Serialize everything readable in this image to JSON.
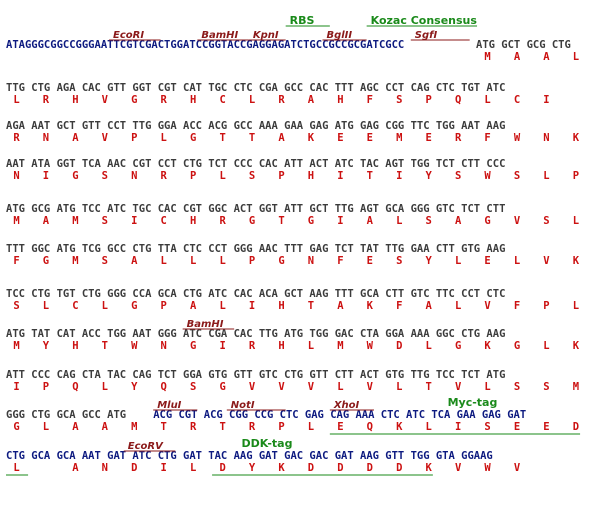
{
  "colors": {
    "dna": "#3c3c3c",
    "vector_dna": "#0d1a80",
    "amino_acid": "#cc1111",
    "restriction_site": "#8b1a1a",
    "feature_tag": "#1a8a1a"
  },
  "rows": [
    {
      "dna": [
        {
          "text": "ATAGGGCGGCCGGGAATTCGTCGACTGGATCCGGTACCGAGGAGATCTGCCGCCGCGATCGCC",
          "color": "vector"
        },
        {
          "text": " ATG GCT GCG CTG",
          "color": "dna"
        }
      ],
      "aa": [
        "M",
        "A",
        "A",
        "L"
      ],
      "aa_start": 65,
      "annotations": [
        {
          "label": "EcoRI",
          "kind": "enzyme",
          "col": 14,
          "len": 7
        },
        {
          "label": "BamHI",
          "kind": "enzyme",
          "col": 26,
          "len": 7
        },
        {
          "label": "KpnI",
          "kind": "enzyme",
          "col": 33,
          "len": 5
        },
        {
          "label": "BglII",
          "kind": "enzyme",
          "col": 43,
          "len": 6
        },
        {
          "label": "SgfI",
          "kind": "enzyme",
          "col": 55,
          "len": 8
        },
        {
          "label": "RBS",
          "kind": "tag",
          "col": 38,
          "len": 6,
          "row": 2
        },
        {
          "label": "Kozac Consensus",
          "kind": "tag",
          "col": 49,
          "len": 15,
          "row": 2
        }
      ]
    },
    {
      "dna": [
        {
          "text": "TTG CTG AGA CAC GTT GGT CGT CAT TGC CTC CGA GCC CAC TTT AGC CCT CAG CTC TGT ATC",
          "color": "dna"
        }
      ],
      "aa": [
        "L",
        "R",
        "H",
        "V",
        "G",
        "R",
        "H",
        "C",
        "L",
        "R",
        "A",
        "H",
        "F",
        "S",
        "P",
        "Q",
        "L",
        "C",
        "I"
      ],
      "aa_start": 1,
      "annotations": []
    },
    {
      "dna": [
        {
          "text": "AGA AAT GCT GTT CCT TTG GGA ACC ACG GCC AAA GAA GAG ATG GAG CGG TTC TGG AAT AAG",
          "color": "dna"
        }
      ],
      "aa": [
        "R",
        "N",
        "A",
        "V",
        "P",
        "L",
        "G",
        "T",
        "T",
        "A",
        "K",
        "E",
        "E",
        "M",
        "E",
        "R",
        "F",
        "W",
        "N",
        "K"
      ],
      "aa_start": 1,
      "annotations": []
    },
    {
      "dna": [
        {
          "text": "AAT ATA GGT TCA AAC CGT CCT CTG TCT CCC CAC ATT ACT ATC TAC AGT TGG TCT CTT CCC",
          "color": "dna"
        }
      ],
      "aa": [
        "N",
        "I",
        "G",
        "S",
        "N",
        "R",
        "P",
        "L",
        "S",
        "P",
        "H",
        "I",
        "T",
        "I",
        "Y",
        "S",
        "W",
        "S",
        "L",
        "P"
      ],
      "aa_start": 1,
      "annotations": []
    },
    {
      "dna": [
        {
          "text": "ATG GCG ATG TCC ATC TGC CAC CGT GGC ACT GGT ATT GCT TTG AGT GCA GGG GTC TCT CTT",
          "color": "dna"
        }
      ],
      "aa": [
        "M",
        "A",
        "M",
        "S",
        "I",
        "C",
        "H",
        "R",
        "G",
        "T",
        "G",
        "I",
        "A",
        "L",
        "S",
        "A",
        "G",
        "V",
        "S",
        "L"
      ],
      "aa_start": 1,
      "annotations": []
    },
    {
      "dna": [
        {
          "text": "TTT GGC ATG TCG GCC CTG TTA CTC CCT GGG AAC TTT GAG TCT TAT TTG GAA CTT GTG AAG",
          "color": "dna"
        }
      ],
      "aa": [
        "F",
        "G",
        "M",
        "S",
        "A",
        "L",
        "L",
        "L",
        "P",
        "G",
        "N",
        "F",
        "E",
        "S",
        "Y",
        "L",
        "E",
        "L",
        "V",
        "K"
      ],
      "aa_start": 1,
      "annotations": []
    },
    {
      "dna": [
        {
          "text": "TCC CTG TGT CTG GGG CCA GCA CTG ATC CAC ACA GCT AAG TTT GCA CTT GTC TTC CCT CTC",
          "color": "dna"
        }
      ],
      "aa": [
        "S",
        "L",
        "C",
        "L",
        "G",
        "P",
        "A",
        "L",
        "I",
        "H",
        "T",
        "A",
        "K",
        "F",
        "A",
        "L",
        "V",
        "F",
        "P",
        "L"
      ],
      "aa_start": 1,
      "annotations": []
    },
    {
      "dna": [
        {
          "text": "ATG TAT CAT ACC TGG AAT GGG ATC CGA CAC TTG ATG TGG GAC CTA GGA AAA GGC CTG AAG",
          "color": "dna"
        }
      ],
      "aa": [
        "M",
        "Y",
        "H",
        "T",
        "W",
        "N",
        "G",
        "I",
        "R",
        "H",
        "L",
        "M",
        "W",
        "D",
        "L",
        "G",
        "K",
        "G",
        "L",
        "K"
      ],
      "aa_start": 1,
      "annotations": [
        {
          "label": "BamHI",
          "kind": "enzyme",
          "col": 24,
          "len": 7
        }
      ]
    },
    {
      "dna": [
        {
          "text": "ATT CCC CAG CTA TAC CAG TCT GGA GTG GTT GTC CTG GTT CTT ACT GTG TTG TCC TCT ATG",
          "color": "dna"
        }
      ],
      "aa": [
        "I",
        "P",
        "Q",
        "L",
        "Y",
        "Q",
        "S",
        "G",
        "V",
        "V",
        "V",
        "L",
        "V",
        "L",
        "T",
        "V",
        "L",
        "S",
        "S",
        "M"
      ],
      "aa_start": 1,
      "annotations": []
    },
    {
      "dna": [
        {
          "text": "GGG CTG GCA GCC ATG ",
          "color": "dna"
        },
        {
          "text": "ACG CGT ACG CGG CCG CTC GAG CAG AAA CTC ATC TCA GAA GAG GAT",
          "color": "vector"
        }
      ],
      "aa": [
        "G",
        "L",
        "A",
        "A",
        "M",
        "T",
        "R",
        "T",
        "R",
        "P",
        "L",
        "E",
        "Q",
        "K",
        "L",
        "I",
        "S",
        "E",
        "E",
        "D"
      ],
      "aa_start": 1,
      "annotations": [
        {
          "label": "MluI",
          "kind": "enzyme",
          "col": 20,
          "len": 6
        },
        {
          "label": "NotI",
          "kind": "enzyme",
          "col": 30,
          "len": 8
        },
        {
          "label": "XhoI",
          "kind": "enzyme",
          "col": 44,
          "len": 6
        },
        {
          "label": "Myc-tag",
          "kind": "tag",
          "col": 60,
          "len": 0
        }
      ],
      "underline": {
        "col": 44,
        "len": 34
      }
    },
    {
      "dna": [
        {
          "text": "CTG GCA GCA AAT GAT ATC CTG GAT TAC AAG GAT GAC GAC GAT AAG GTT TGG GTA GGAAG",
          "color": "vector"
        }
      ],
      "aa": [
        "L",
        "A",
        "N",
        "D",
        "I",
        "L",
        "D",
        "Y",
        "K",
        "D",
        "D",
        "D",
        "D",
        "K",
        "V",
        "W",
        "V"
      ],
      "aa_start": 5,
      "annotations": [
        {
          "label": "EcoRV",
          "kind": "enzyme",
          "col": 16,
          "len": 7
        },
        {
          "label": "DDK-tag",
          "kind": "tag",
          "col": 32,
          "len": 0
        }
      ],
      "underline": {
        "col": 28,
        "len": 30
      },
      "underline2": {
        "col": 0,
        "len": 3
      }
    }
  ]
}
